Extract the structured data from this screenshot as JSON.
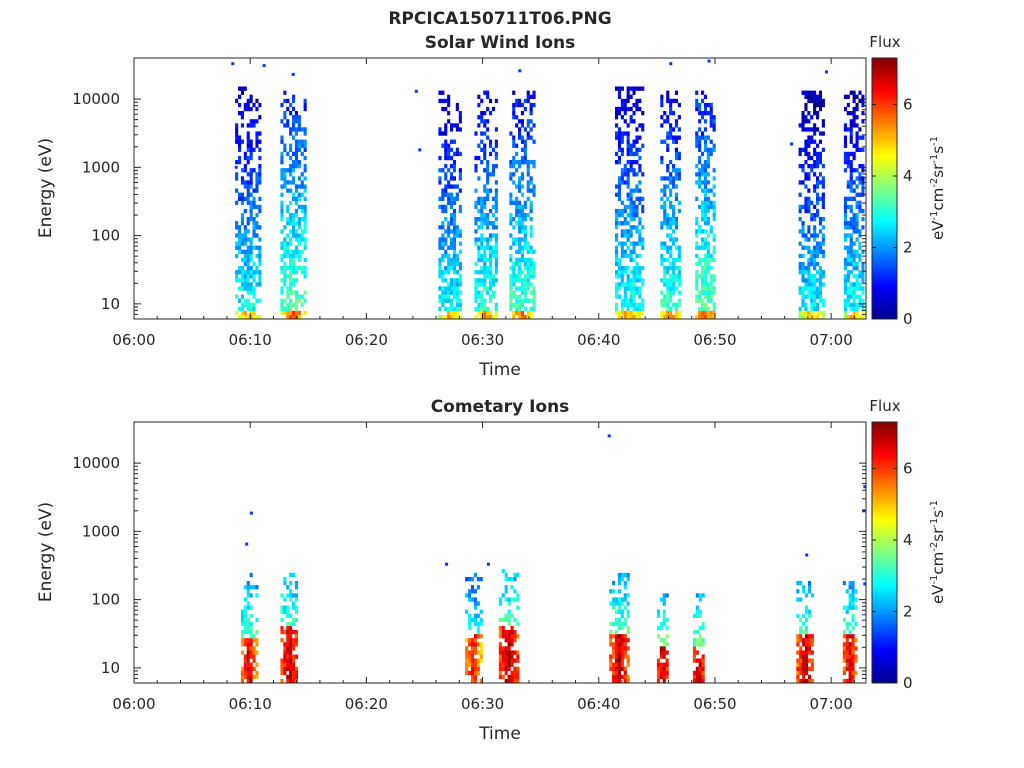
{
  "figure": {
    "title": "RPCICA150711T06.PNG"
  },
  "chart_data": [
    {
      "type": "heatmap",
      "title": "Solar Wind Ions",
      "xlabel": "Time",
      "ylabel": "Energy (eV)",
      "y_scale": "log",
      "x_ticks": [
        "06:00",
        "06:10",
        "06:20",
        "06:30",
        "06:40",
        "06:50",
        "07:00"
      ],
      "x_range_min": [
        0,
        63
      ],
      "y_ticks": [
        10,
        100,
        1000,
        10000
      ],
      "y_tick_labels": [
        "10",
        "100",
        "1000",
        "10000"
      ],
      "y_range_eV": [
        6,
        40000
      ],
      "colorbar": {
        "label": "Flux",
        "units": "eV-1cm-2sr-1s-1",
        "range": [
          0,
          7.3
        ],
        "ticks": [
          0,
          2,
          4,
          6
        ],
        "colormap": "jet"
      },
      "bursts": [
        {
          "center_min": 9.8,
          "width_min": 2.2,
          "e_max": 15000,
          "low_flux": 5.2,
          "scatter_low": 8
        },
        {
          "center_min": 13.7,
          "width_min": 2.2,
          "e_max": 14000,
          "low_flux": 5.8,
          "scatter_low": 8
        },
        {
          "center_min": 27.2,
          "width_min": 2.0,
          "e_max": 14000,
          "low_flux": 5.2,
          "scatter_low": 8
        },
        {
          "center_min": 30.3,
          "width_min": 2.0,
          "e_max": 14000,
          "low_flux": 5.4,
          "scatter_low": 8
        },
        {
          "center_min": 33.4,
          "width_min": 2.2,
          "e_max": 14000,
          "low_flux": 5.6,
          "scatter_low": 8
        },
        {
          "center_min": 42.6,
          "width_min": 2.4,
          "e_max": 15000,
          "low_flux": 5.3,
          "scatter_low": 8
        },
        {
          "center_min": 46.2,
          "width_min": 1.8,
          "e_max": 14000,
          "low_flux": 5.5,
          "scatter_low": 8
        },
        {
          "center_min": 49.2,
          "width_min": 1.8,
          "e_max": 14000,
          "low_flux": 5.8,
          "scatter_low": 8
        },
        {
          "center_min": 58.3,
          "width_min": 2.2,
          "e_max": 13000,
          "low_flux": 5.0,
          "scatter_low": 8
        },
        {
          "center_min": 62.0,
          "width_min": 1.8,
          "e_max": 13000,
          "low_flux": 5.2,
          "scatter_low": 8
        }
      ],
      "isolated_points": [
        {
          "t_min": 8.5,
          "e": 33000
        },
        {
          "t_min": 11.2,
          "e": 31000
        },
        {
          "t_min": 13.7,
          "e": 23000
        },
        {
          "t_min": 24.3,
          "e": 13000
        },
        {
          "t_min": 33.2,
          "e": 26000
        },
        {
          "t_min": 46.2,
          "e": 33000
        },
        {
          "t_min": 49.5,
          "e": 36000
        },
        {
          "t_min": 59.6,
          "e": 25000
        },
        {
          "t_min": 8.8,
          "e": 1000
        },
        {
          "t_min": 24.6,
          "e": 1800
        },
        {
          "t_min": 56.6,
          "e": 2200
        }
      ]
    },
    {
      "type": "heatmap",
      "title": "Cometary Ions",
      "xlabel": "Time",
      "ylabel": "Energy (eV)",
      "y_scale": "log",
      "x_ticks": [
        "06:00",
        "06:10",
        "06:20",
        "06:30",
        "06:40",
        "06:50",
        "07:00"
      ],
      "x_range_min": [
        0,
        63
      ],
      "y_ticks": [
        10,
        100,
        1000,
        10000
      ],
      "y_tick_labels": [
        "10",
        "100",
        "1000",
        "10000"
      ],
      "y_range_eV": [
        6,
        40000
      ],
      "colorbar": {
        "label": "Flux",
        "units": "eV-1cm-2sr-1s-1",
        "range": [
          0,
          7.3
        ],
        "ticks": [
          0,
          2,
          4,
          6
        ],
        "colormap": "jet"
      },
      "bursts": [
        {
          "center_min": 9.9,
          "width_min": 1.4,
          "e_max": 250,
          "low_flux": 6.6,
          "scatter_low": 28
        },
        {
          "center_min": 13.4,
          "width_min": 1.6,
          "e_max": 250,
          "low_flux": 6.8,
          "scatter_low": 40
        },
        {
          "center_min": 29.2,
          "width_min": 1.4,
          "e_max": 250,
          "low_flux": 6.3,
          "scatter_low": 30
        },
        {
          "center_min": 32.3,
          "width_min": 1.8,
          "e_max": 300,
          "low_flux": 6.9,
          "scatter_low": 40
        },
        {
          "center_min": 41.8,
          "width_min": 1.8,
          "e_max": 250,
          "low_flux": 6.8,
          "scatter_low": 30
        },
        {
          "center_min": 45.5,
          "width_min": 1.0,
          "e_max": 120,
          "low_flux": 7.0,
          "scatter_low": 20
        },
        {
          "center_min": 48.6,
          "width_min": 1.0,
          "e_max": 120,
          "low_flux": 7.0,
          "scatter_low": 20
        },
        {
          "center_min": 57.8,
          "width_min": 1.6,
          "e_max": 200,
          "low_flux": 6.8,
          "scatter_low": 30
        },
        {
          "center_min": 61.6,
          "width_min": 1.2,
          "e_max": 200,
          "low_flux": 6.7,
          "scatter_low": 30
        }
      ],
      "isolated_points": [
        {
          "t_min": 10.1,
          "e": 1850
        },
        {
          "t_min": 9.7,
          "e": 650
        },
        {
          "t_min": 40.9,
          "e": 25000
        },
        {
          "t_min": 57.9,
          "e": 450
        },
        {
          "t_min": 62.9,
          "e": 4500
        },
        {
          "t_min": 62.8,
          "e": 2000
        },
        {
          "t_min": 62.9,
          "e": 170
        },
        {
          "t_min": 26.9,
          "e": 330
        },
        {
          "t_min": 30.5,
          "e": 330
        }
      ]
    }
  ]
}
